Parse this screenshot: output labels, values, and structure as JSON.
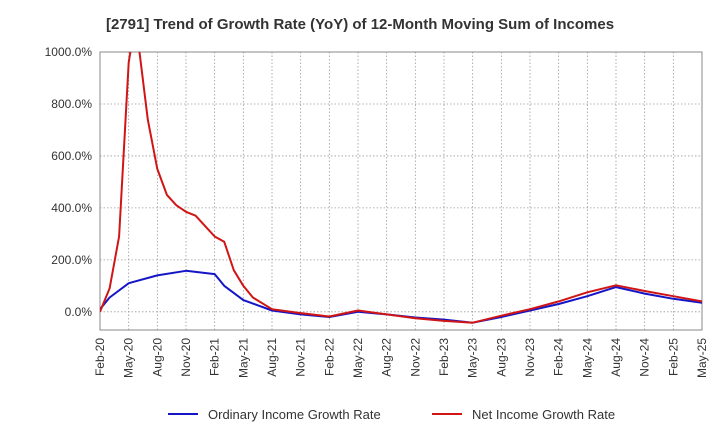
{
  "chart_data": {
    "type": "line",
    "title": "[2791]  Trend of Growth Rate (YoY) of 12-Month Moving Sum of Incomes",
    "xlabel": "",
    "ylabel": "",
    "ylim": [
      -70,
      1000
    ],
    "y_ticks": [
      0,
      200,
      400,
      600,
      800,
      1000
    ],
    "y_tick_labels": [
      "0.0%",
      "200.0%",
      "400.0%",
      "600.0%",
      "800.0%",
      "1000.0%"
    ],
    "x_tick_labels": [
      "Feb-20",
      "May-20",
      "Aug-20",
      "Nov-20",
      "Feb-21",
      "May-21",
      "Aug-21",
      "Nov-21",
      "Feb-22",
      "May-22",
      "Aug-22",
      "Nov-22",
      "Feb-23",
      "May-23",
      "Aug-23",
      "Nov-23",
      "Feb-24",
      "May-24",
      "Aug-24",
      "Nov-24",
      "Feb-25",
      "May-25"
    ],
    "grid": true,
    "legend_position": "bottom",
    "series": [
      {
        "name": "Ordinary Income Growth Rate",
        "color": "#1515c8",
        "points": [
          [
            0,
            10
          ],
          [
            1,
            55
          ],
          [
            3,
            110
          ],
          [
            6,
            140
          ],
          [
            9,
            158
          ],
          [
            12,
            145
          ],
          [
            13,
            100
          ],
          [
            15,
            45
          ],
          [
            18,
            5
          ],
          [
            21,
            -10
          ],
          [
            24,
            -20
          ],
          [
            27,
            0
          ],
          [
            30,
            -10
          ],
          [
            33,
            -22
          ],
          [
            36,
            -30
          ],
          [
            39,
            -42
          ],
          [
            42,
            -20
          ],
          [
            45,
            5
          ],
          [
            48,
            30
          ],
          [
            51,
            60
          ],
          [
            54,
            95
          ],
          [
            57,
            70
          ],
          [
            60,
            50
          ],
          [
            63,
            35
          ],
          [
            66,
            22
          ]
        ]
      },
      {
        "name": "Net Income Growth Rate",
        "color": "#d01515",
        "points": [
          [
            0,
            0
          ],
          [
            1,
            90
          ],
          [
            2,
            290
          ],
          [
            3,
            960
          ],
          [
            3.4,
            1050
          ],
          [
            4,
            1040
          ],
          [
            5,
            740
          ],
          [
            6,
            550
          ],
          [
            7,
            450
          ],
          [
            8,
            410
          ],
          [
            9,
            385
          ],
          [
            10,
            370
          ],
          [
            11,
            330
          ],
          [
            12,
            290
          ],
          [
            13,
            270
          ],
          [
            14,
            160
          ],
          [
            15,
            100
          ],
          [
            16,
            55
          ],
          [
            18,
            10
          ],
          [
            21,
            -5
          ],
          [
            24,
            -18
          ],
          [
            27,
            5
          ],
          [
            30,
            -10
          ],
          [
            33,
            -25
          ],
          [
            36,
            -35
          ],
          [
            39,
            -42
          ],
          [
            42,
            -15
          ],
          [
            45,
            10
          ],
          [
            48,
            40
          ],
          [
            51,
            75
          ],
          [
            54,
            102
          ],
          [
            57,
            80
          ],
          [
            60,
            60
          ],
          [
            63,
            40
          ],
          [
            66,
            25
          ]
        ]
      }
    ]
  }
}
